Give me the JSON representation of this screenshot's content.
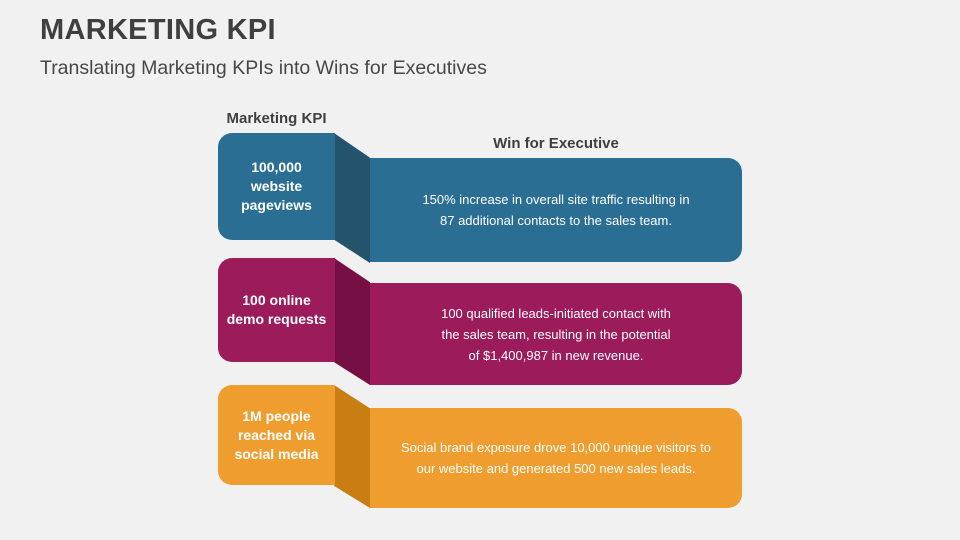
{
  "slide": {
    "title": "MARKETING KPI",
    "subtitle": "Translating Marketing KPIs into Wins for Executives"
  },
  "table": {
    "kpi_column_header": "Marketing KPI",
    "win_column_header": "Win for Executive",
    "rows": [
      {
        "kpi": "100,000\nwebsite\npageviews",
        "win": "150% increase in overall site traffic resulting in\n87 additional contacts to the sales team.",
        "color": "#2b6e93",
        "fold_color": "#24536e"
      },
      {
        "kpi": "100 online\ndemo requests",
        "win": "100 qualified leads-initiated contact with\nthe sales team, resulting in the potential\nof $1,400,987 in new revenue.",
        "color": "#9c1b5b",
        "fold_color": "#750f44"
      },
      {
        "kpi": "1M people\nreached via\nsocial media",
        "win": "Social brand exposure drove 10,000 unique visitors to\nour website and generated 500 new sales leads.",
        "color": "#ef9d2f",
        "fold_color": "#c97d12"
      }
    ]
  },
  "colors": {
    "background": "#f1f1f2",
    "heading_text": "#3f3f3f",
    "box_text": "#ffffff"
  }
}
